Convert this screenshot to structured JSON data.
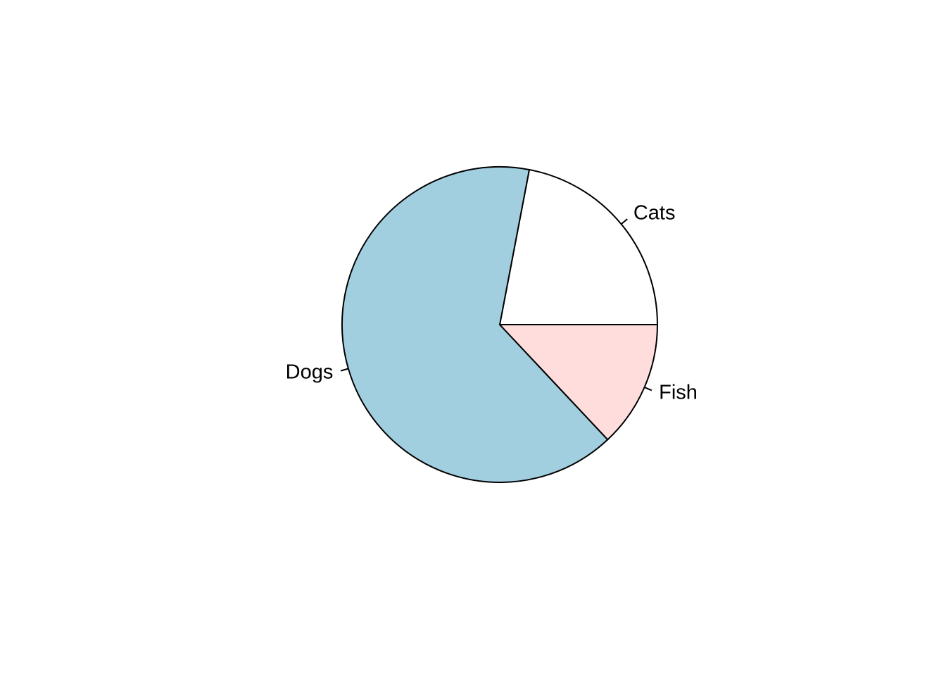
{
  "chart_data": {
    "type": "pie",
    "slices": [
      {
        "label": "Cats",
        "value": 22,
        "color": "#FFFFFF"
      },
      {
        "label": "Dogs",
        "value": 65,
        "color": "#A1CFE0"
      },
      {
        "label": "Fish",
        "value": 13,
        "color": "#FFDDDD"
      }
    ],
    "start_angle_deg": 0,
    "direction": "counterclockwise",
    "title": "",
    "legend": "none"
  }
}
